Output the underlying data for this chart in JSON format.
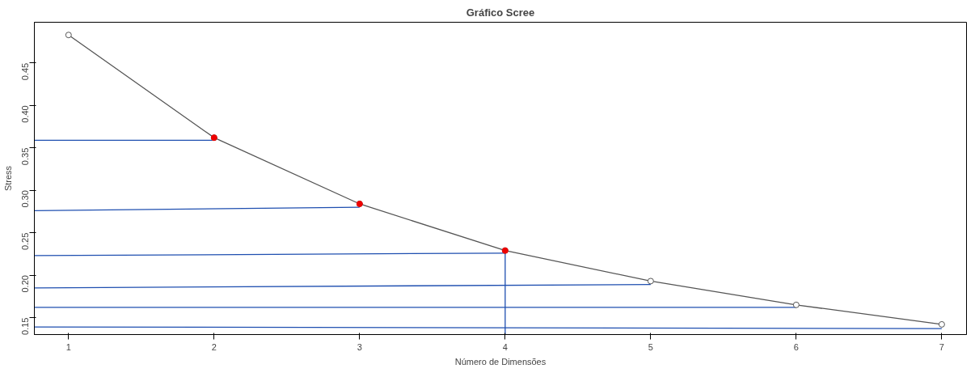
{
  "chart_data": {
    "type": "line",
    "title": "Gráfico Scree",
    "xlabel": "Número de Dimensões",
    "ylabel": "Stress",
    "x": [
      1,
      2,
      3,
      4,
      5,
      6,
      7
    ],
    "series": [
      {
        "color": "#1f4fb0",
        "x": [
          0.765,
          2
        ],
        "values": [
          0.359,
          0.359
        ],
        "marker": "none"
      },
      {
        "color": "#1f4fb0",
        "x": [
          0.765,
          3
        ],
        "values": [
          0.276,
          0.28
        ],
        "marker": "none"
      },
      {
        "color": "#1f4fb0",
        "x": [
          0.765,
          4
        ],
        "values": [
          0.223,
          0.226
        ],
        "marker": "none"
      },
      {
        "color": "#1f4fb0",
        "x": [
          0.765,
          5
        ],
        "values": [
          0.185,
          0.189
        ],
        "marker": "none"
      },
      {
        "color": "#1f4fb0",
        "x": [
          0.765,
          6
        ],
        "values": [
          0.162,
          0.162
        ],
        "marker": "none"
      },
      {
        "color": "#1f4fb0",
        "x": [
          0.765,
          7
        ],
        "values": [
          0.139,
          0.137
        ],
        "marker": "none"
      },
      {
        "color": "#1f4fb0",
        "x": [
          4,
          4
        ],
        "values": [
          0.226,
          0.13
        ],
        "marker": "none"
      },
      {
        "color": "#555555",
        "values": [
          0.483,
          0.362,
          0.284,
          0.229,
          0.193,
          0.165,
          0.142
        ],
        "marker": "circle"
      },
      {
        "type": "scatter",
        "color": "#ee0000",
        "x": [
          2,
          3,
          4
        ],
        "values": [
          0.362,
          0.284,
          0.229
        ],
        "marker": "circle"
      }
    ],
    "xlim": [
      0.765,
      7.17
    ],
    "ylim": [
      0.13,
      0.498
    ],
    "xticks": [
      1,
      2,
      3,
      4,
      5,
      6,
      7
    ],
    "yticks": [
      0.15,
      {
        "value": 0.2,
        "label": "0.20"
      },
      0.25,
      {
        "value": 0.3,
        "label": "0.30"
      },
      0.35,
      {
        "value": 0.4,
        "label": "0.40"
      },
      0.45
    ],
    "grid": false
  }
}
